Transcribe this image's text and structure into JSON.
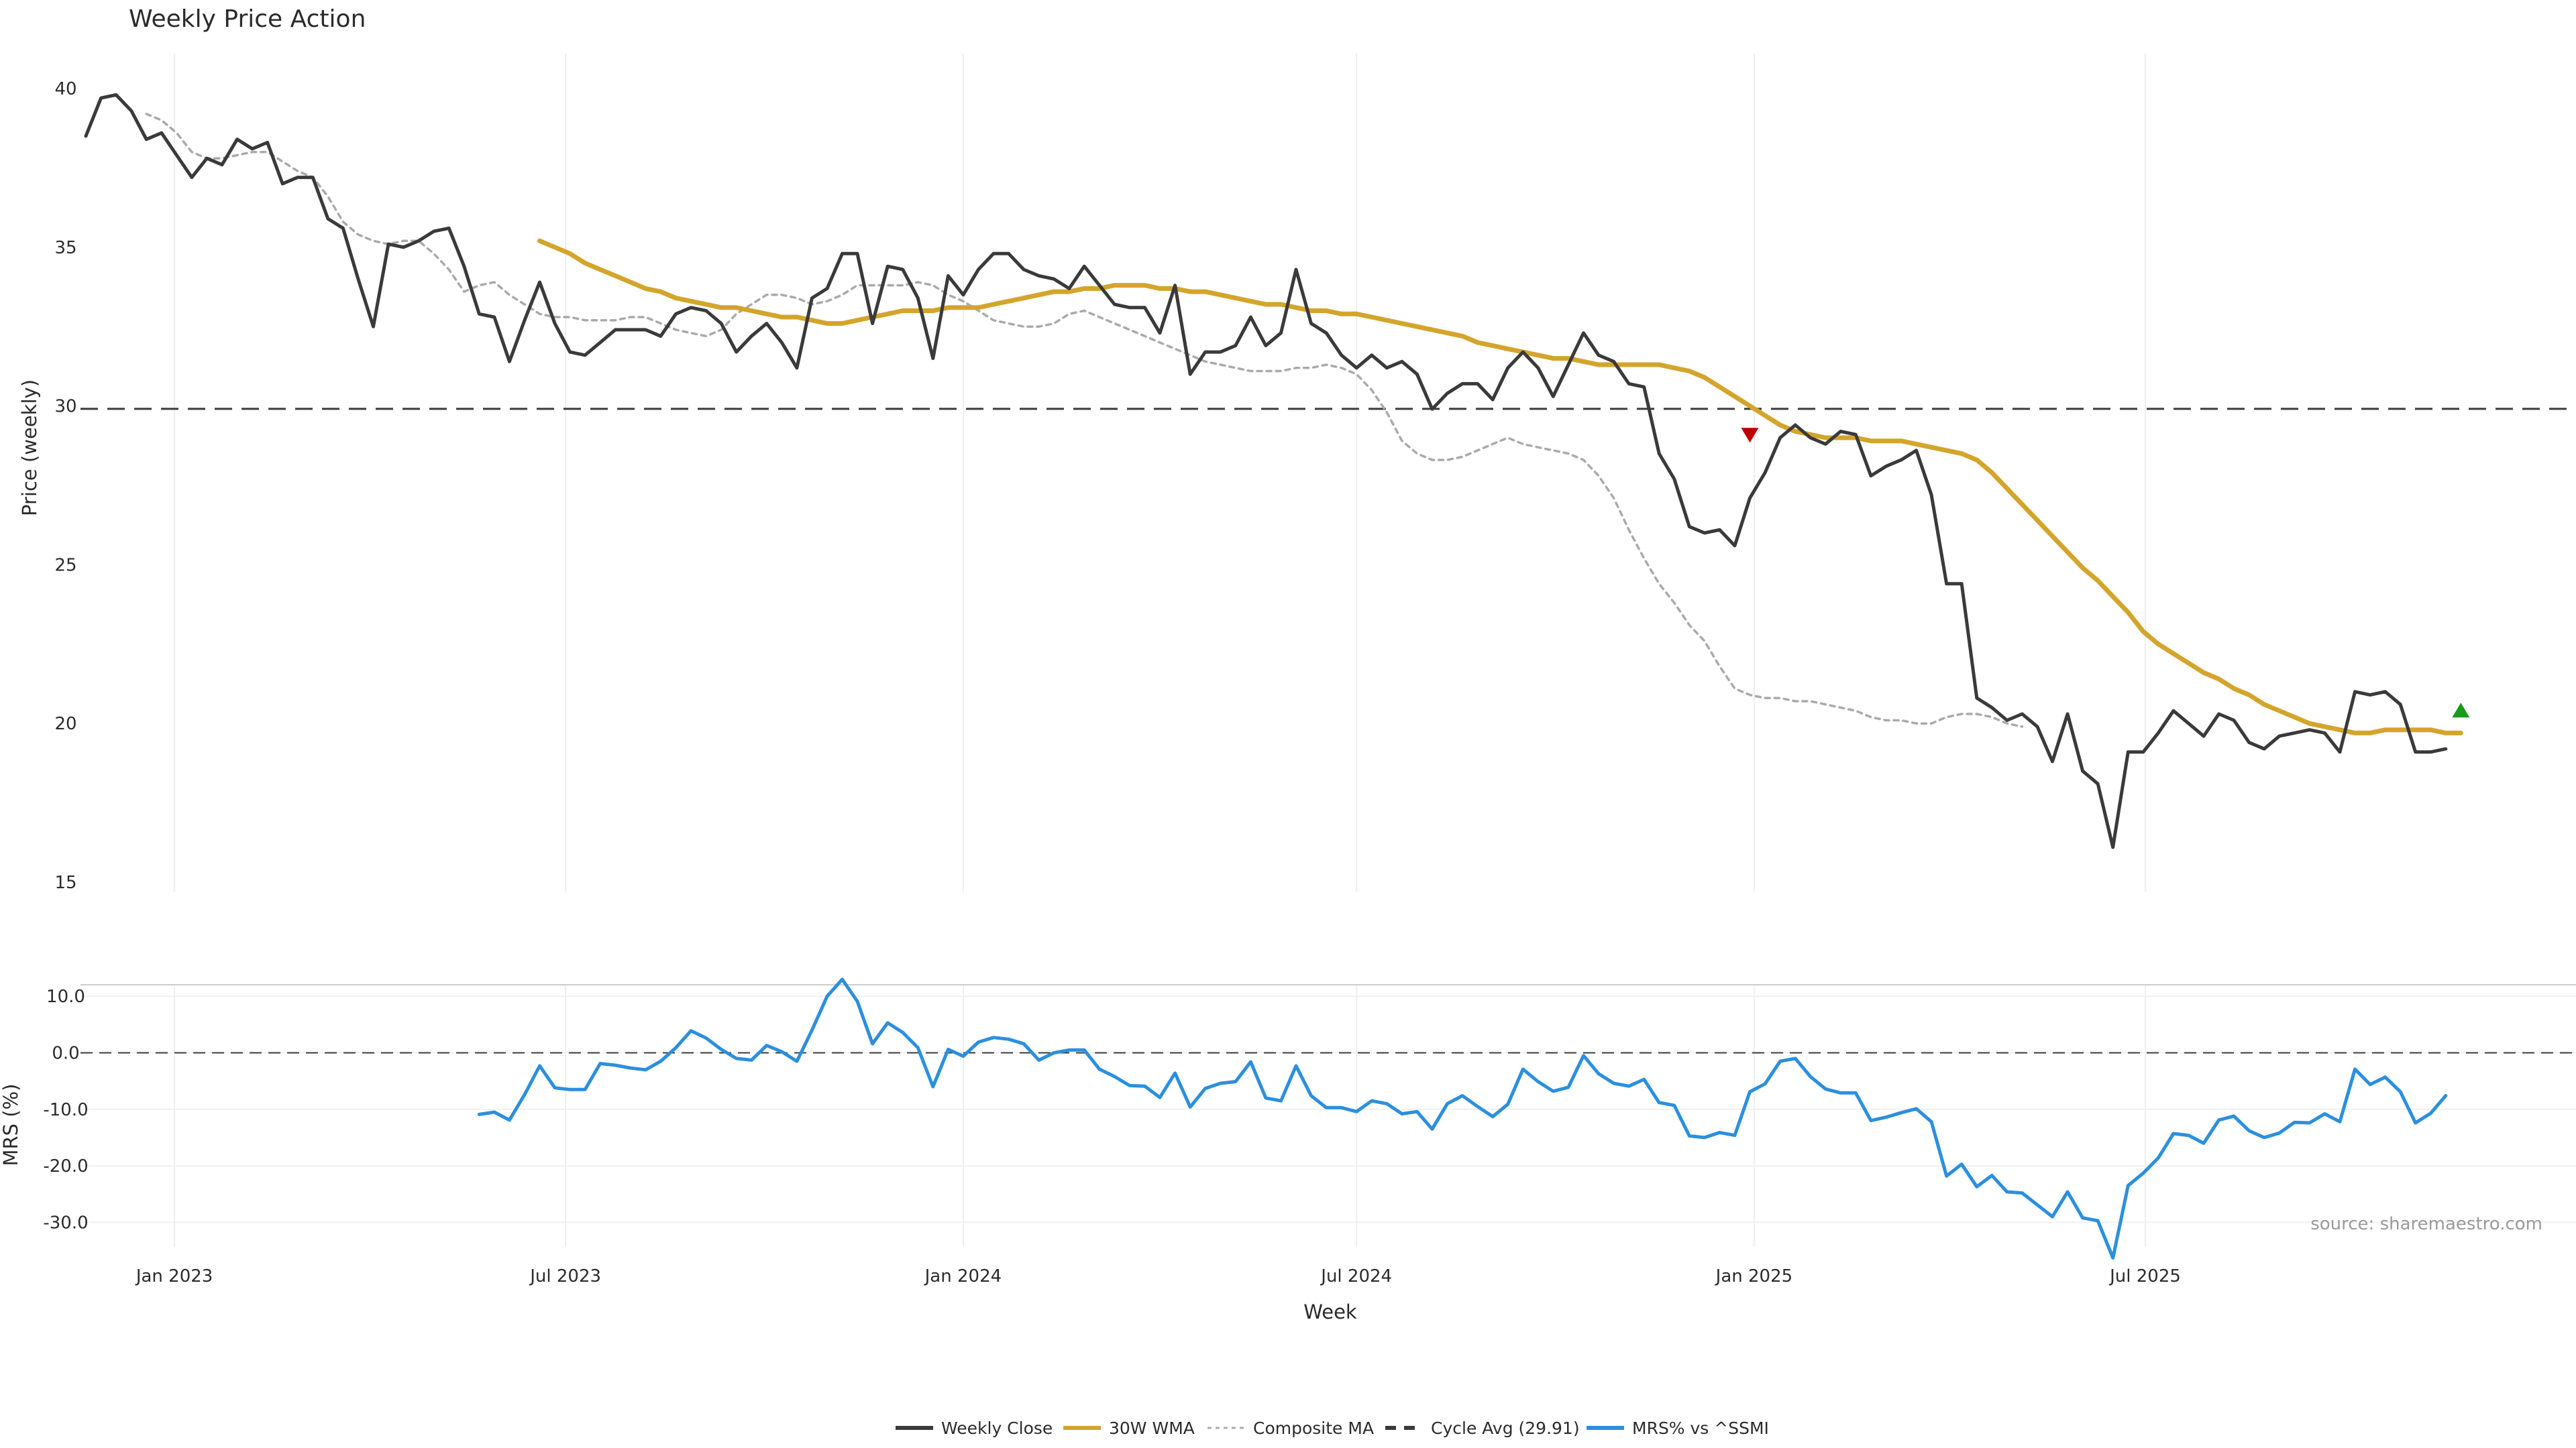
{
  "chart_data": [
    {
      "type": "line",
      "title": "Weekly Price Action",
      "ylabel": "Price (weekly)",
      "ylim": [
        15,
        40
      ],
      "yticks": [
        15,
        20,
        25,
        30,
        35,
        40
      ],
      "grid": "vertical",
      "x_start": "2022-11-21",
      "x_step_days": 7,
      "series": [
        {
          "name": "Weekly Close",
          "color": "#3a3a3a",
          "style": "solid",
          "start_index": 0,
          "values": [
            38.5,
            39.7,
            39.8,
            39.3,
            38.4,
            38.6,
            37.9,
            37.2,
            37.8,
            37.6,
            38.4,
            38.1,
            38.3,
            37.0,
            37.2,
            37.2,
            35.9,
            35.6,
            34.0,
            32.5,
            35.1,
            35.0,
            35.2,
            35.5,
            35.6,
            34.4,
            32.9,
            32.8,
            31.4,
            32.7,
            33.9,
            32.6,
            31.7,
            31.6,
            32.0,
            32.4,
            32.4,
            32.4,
            32.2,
            32.9,
            33.1,
            33.0,
            32.6,
            31.7,
            32.2,
            32.6,
            32.0,
            31.2,
            33.4,
            33.7,
            34.8,
            34.8,
            32.6,
            34.4,
            34.3,
            33.4,
            31.5,
            34.1,
            33.5,
            34.3,
            34.8,
            34.8,
            34.3,
            34.1,
            34.0,
            33.7,
            34.4,
            33.8,
            33.2,
            33.1,
            33.1,
            32.3,
            33.8,
            31.0,
            31.7,
            31.7,
            31.9,
            32.8,
            31.9,
            32.3,
            34.3,
            32.6,
            32.3,
            31.6,
            31.2,
            31.6,
            31.2,
            31.4,
            31.0,
            29.9,
            30.4,
            30.7,
            30.7,
            30.2,
            31.2,
            31.7,
            31.2,
            30.3,
            31.3,
            32.3,
            31.6,
            31.4,
            30.7,
            30.6,
            28.5,
            27.7,
            26.2,
            26.0,
            26.1,
            25.6,
            27.1,
            27.9,
            29.0,
            29.4,
            29.0,
            28.8,
            29.2,
            29.1,
            27.8,
            28.1,
            28.3,
            28.6,
            27.2,
            24.4,
            24.4,
            20.8,
            20.5,
            20.1,
            20.3,
            19.9,
            18.8,
            20.3,
            18.5,
            18.1,
            16.1,
            19.1,
            19.1,
            19.7,
            20.4,
            20.0,
            19.6,
            20.3,
            20.1,
            19.4,
            19.2,
            19.6,
            19.7,
            19.8,
            19.7,
            19.1,
            21.0,
            20.9,
            21.0,
            20.6,
            19.1,
            19.1,
            19.2
          ]
        },
        {
          "name": "30W WMA",
          "color": "#d4a52c",
          "style": "solid",
          "start_index": 30,
          "values": [
            35.2,
            35.0,
            34.8,
            34.5,
            34.3,
            34.1,
            33.9,
            33.7,
            33.6,
            33.4,
            33.3,
            33.2,
            33.1,
            33.1,
            33.0,
            32.9,
            32.8,
            32.8,
            32.7,
            32.6,
            32.6,
            32.7,
            32.8,
            32.9,
            33.0,
            33.0,
            33.0,
            33.1,
            33.1,
            33.1,
            33.2,
            33.3,
            33.4,
            33.5,
            33.6,
            33.6,
            33.7,
            33.7,
            33.8,
            33.8,
            33.8,
            33.7,
            33.7,
            33.6,
            33.6,
            33.5,
            33.4,
            33.3,
            33.2,
            33.2,
            33.1,
            33.0,
            33.0,
            32.9,
            32.9,
            32.8,
            32.7,
            32.6,
            32.5,
            32.4,
            32.3,
            32.2,
            32.0,
            31.9,
            31.8,
            31.7,
            31.6,
            31.5,
            31.5,
            31.4,
            31.3,
            31.3,
            31.3,
            31.3,
            31.3,
            31.2,
            31.1,
            30.9,
            30.6,
            30.3,
            30.0,
            29.7,
            29.4,
            29.2,
            29.1,
            29.0,
            29.0,
            29.0,
            28.9,
            28.9,
            28.9,
            28.8,
            28.7,
            28.6,
            28.5,
            28.3,
            27.9,
            27.4,
            26.9,
            26.4,
            25.9,
            25.4,
            24.9,
            24.5,
            24.0,
            23.5,
            22.9,
            22.5,
            22.2,
            21.9,
            21.6,
            21.4,
            21.1,
            20.9,
            20.6,
            20.4,
            20.2,
            20.0,
            19.9,
            19.8,
            19.7,
            19.7,
            19.8,
            19.8,
            19.8,
            19.8,
            19.7,
            19.7
          ]
        },
        {
          "name": "Composite MA",
          "color": "#aaaaaa",
          "style": "dotted",
          "start_index": 4,
          "values": [
            39.2,
            39.0,
            38.6,
            38.0,
            37.8,
            37.8,
            37.9,
            38.0,
            38.0,
            37.7,
            37.4,
            37.2,
            36.6,
            35.8,
            35.4,
            35.2,
            35.1,
            35.2,
            35.2,
            34.8,
            34.3,
            33.6,
            33.8,
            33.9,
            33.5,
            33.2,
            32.9,
            32.8,
            32.8,
            32.7,
            32.7,
            32.7,
            32.8,
            32.8,
            32.6,
            32.4,
            32.3,
            32.2,
            32.4,
            32.9,
            33.2,
            33.5,
            33.5,
            33.4,
            33.2,
            33.3,
            33.5,
            33.8,
            33.8,
            33.8,
            33.8,
            33.9,
            33.8,
            33.5,
            33.3,
            33.0,
            32.7,
            32.6,
            32.5,
            32.5,
            32.6,
            32.9,
            33.0,
            32.8,
            32.6,
            32.4,
            32.2,
            32.0,
            31.8,
            31.6,
            31.4,
            31.3,
            31.2,
            31.1,
            31.1,
            31.1,
            31.2,
            31.2,
            31.3,
            31.2,
            31.0,
            30.5,
            29.8,
            28.9,
            28.5,
            28.3,
            28.3,
            28.4,
            28.6,
            28.8,
            29.0,
            28.8,
            28.7,
            28.6,
            28.5,
            28.3,
            27.8,
            27.1,
            26.1,
            25.2,
            24.4,
            23.8,
            23.1,
            22.6,
            21.8,
            21.1,
            20.9,
            20.8,
            20.8,
            20.7,
            20.7,
            20.6,
            20.5,
            20.4,
            20.2,
            20.1,
            20.1,
            20.0,
            20.0,
            20.2,
            20.3,
            20.3,
            20.2,
            20.0,
            19.9
          ]
        }
      ],
      "reference_line": {
        "name": "Cycle Avg (29.91)",
        "value": 29.91,
        "color": "#3a3a3a",
        "style": "dashed"
      },
      "markers": [
        {
          "type": "sell",
          "shape": "triangle-down",
          "color": "#c00000",
          "index": 110,
          "value": 29.1
        },
        {
          "type": "buy",
          "shape": "triangle-up",
          "color": "#1a9a1a",
          "index": 157,
          "value": 20.4
        }
      ]
    },
    {
      "type": "line",
      "ylabel": "MRS (%)",
      "xlabel": "Week",
      "ylim": [
        -36,
        15
      ],
      "yticks": [
        -30.0,
        -20.0,
        -10.0,
        0.0,
        10.0
      ],
      "ytick_labels": [
        "-30.0",
        "-20.0",
        "-10.0",
        "0.0",
        "10.0"
      ],
      "xtick_labels": [
        "Jan 2023",
        "Jul 2023",
        "Jan 2024",
        "Jul 2024",
        "Jan 2025",
        "Jul 2025"
      ],
      "xtick_dates": [
        "2023-01-01",
        "2023-07-01",
        "2024-01-01",
        "2024-07-01",
        "2025-01-01",
        "2025-07-01"
      ],
      "series": [
        {
          "name": "MRS% vs ^SSMI",
          "color": "#2b8fdf",
          "style": "solid",
          "start_index": 26,
          "values": [
            -10.9,
            -10.5,
            -11.9,
            -7.4,
            -2.3,
            -6.2,
            -6.5,
            -6.5,
            -1.9,
            -2.2,
            -2.7,
            -3.0,
            -1.5,
            0.9,
            3.9,
            2.6,
            0.6,
            -1.0,
            -1.3,
            1.3,
            0.2,
            -1.5,
            4.0,
            10.0,
            13.0,
            9.1,
            1.6,
            5.3,
            3.6,
            0.9,
            -6.0,
            0.6,
            -0.6,
            1.9,
            2.7,
            2.4,
            1.6,
            -1.3,
            0.0,
            0.5,
            0.5,
            -2.9,
            -4.2,
            -5.8,
            -5.9,
            -7.9,
            -3.6,
            -9.6,
            -6.3,
            -5.4,
            -5.1,
            -1.6,
            -8.0,
            -8.5,
            -2.3,
            -7.6,
            -9.7,
            -9.7,
            -10.4,
            -8.5,
            -9.0,
            -10.8,
            -10.4,
            -13.5,
            -9.0,
            -7.6,
            -9.5,
            -11.3,
            -9.1,
            -2.9,
            -5.1,
            -6.8,
            -6.1,
            -0.5,
            -3.7,
            -5.4,
            -5.9,
            -4.7,
            -8.8,
            -9.3,
            -14.7,
            -15.0,
            -14.1,
            -14.6,
            -6.9,
            -5.5,
            -1.5,
            -1.0,
            -4.2,
            -6.4,
            -7.1,
            -7.1,
            -12.0,
            -11.4,
            -10.6,
            -9.9,
            -12.2,
            -21.8,
            -19.7,
            -23.7,
            -21.7,
            -24.6,
            -24.8,
            -26.9,
            -29.0,
            -24.6,
            -29.2,
            -29.7,
            -36.3,
            -23.5,
            -21.3,
            -18.6,
            -14.3,
            -14.6,
            -16.0,
            -11.9,
            -11.2,
            -13.8,
            -15.0,
            -14.2,
            -12.3,
            -12.4,
            -10.8,
            -12.2,
            -2.9,
            -5.6,
            -4.3,
            -6.9,
            -12.4,
            -10.7,
            -7.6
          ]
        }
      ],
      "reference_line": {
        "value": 0,
        "color": "#3a3a3a",
        "style": "dashed"
      }
    }
  ],
  "legend": {
    "placement": "bottom-center",
    "items": [
      {
        "label": "Weekly Close",
        "color": "#3a3a3a",
        "style": "solid"
      },
      {
        "label": "30W WMA",
        "color": "#d4a52c",
        "style": "solid"
      },
      {
        "label": "Composite MA",
        "color": "#aaaaaa",
        "style": "dotted"
      },
      {
        "label": "Cycle Avg (29.91)",
        "color": "#3a3a3a",
        "style": "dashed"
      },
      {
        "label": "MRS% vs ^SSMI",
        "color": "#2b8fdf",
        "style": "solid"
      }
    ]
  },
  "source": "source: sharemaestro.com"
}
